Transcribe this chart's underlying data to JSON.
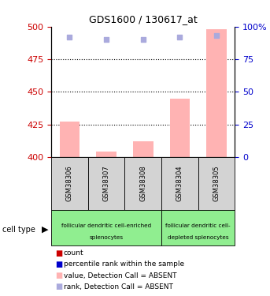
{
  "title": "GDS1600 / 130617_at",
  "samples": [
    "GSM38306",
    "GSM38307",
    "GSM38308",
    "GSM38304",
    "GSM38305"
  ],
  "bar_values": [
    427,
    404,
    412,
    445,
    498
  ],
  "rank_values": [
    92,
    90,
    90,
    92,
    93
  ],
  "ylim_left": [
    400,
    500
  ],
  "ylim_right": [
    0,
    100
  ],
  "yticks_left": [
    400,
    425,
    450,
    475,
    500
  ],
  "yticks_right": [
    0,
    25,
    50,
    75,
    100
  ],
  "bar_color": "#ffb3b3",
  "rank_dot_color": "#aaaadd",
  "bar_bottom": 400,
  "cell_groups": [
    {
      "label": "follicular dendritic cell-enriched\nsplenocytes",
      "cols": 3
    },
    {
      "label": "follicular dendritic cell-\ndepleted splenocytes",
      "cols": 2
    }
  ],
  "cell_type_label": "cell type",
  "legend_items": [
    {
      "color": "#cc0000",
      "label": "count"
    },
    {
      "color": "#0000cc",
      "label": "percentile rank within the sample"
    },
    {
      "color": "#ffb3b3",
      "label": "value, Detection Call = ABSENT"
    },
    {
      "color": "#aaaadd",
      "label": "rank, Detection Call = ABSENT"
    }
  ],
  "dotted_gridlines": [
    425,
    450,
    475
  ],
  "right_axis_color": "#0000cc",
  "left_axis_color": "#cc0000",
  "sample_box_color": "#d3d3d3",
  "cell_type_box_color": "#90ee90"
}
